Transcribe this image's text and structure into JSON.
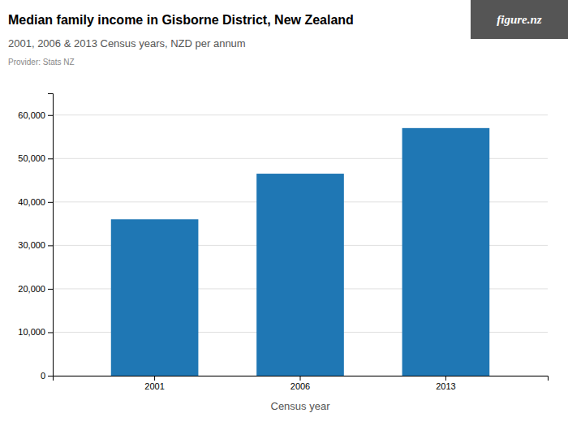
{
  "chart_data": {
    "type": "bar",
    "title": "Median family income in Gisborne District, New Zealand",
    "subtitle": "2001, 2006 & 2013 Census years, NZD per annum",
    "annotations": [
      "Provider: Stats NZ",
      "figure.nz"
    ],
    "xlabel": "Census year",
    "categories": [
      "2001",
      "2006",
      "2013"
    ],
    "values": [
      36000,
      46500,
      57000
    ],
    "ylim": [
      0,
      65000
    ],
    "yticks": [
      0,
      {
        "value": 10000,
        "label": "10,000"
      },
      {
        "value": 20000,
        "label": "20,000"
      },
      {
        "value": 30000,
        "label": "30,000"
      },
      {
        "value": 40000,
        "label": "40,000"
      },
      {
        "value": 50000,
        "label": "50,000"
      },
      {
        "value": 60000,
        "label": "60,000"
      }
    ],
    "grid": true
  }
}
